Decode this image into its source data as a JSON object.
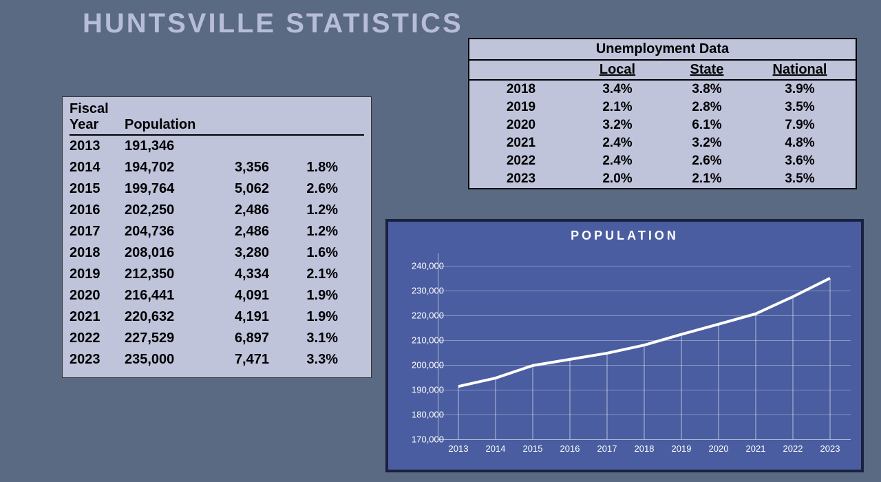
{
  "page": {
    "title": "HUNTSVILLE STATISTICS",
    "background_color": "#5a6a82",
    "title_color": "#b7bdd8"
  },
  "population_table": {
    "background_color": "#bfc4db",
    "header": {
      "col1_line1": "Fiscal",
      "col1_line2": "Year",
      "col2": "Population"
    },
    "rows": [
      {
        "year": "2013",
        "pop": "191,346",
        "delta": "",
        "pct": ""
      },
      {
        "year": "2014",
        "pop": "194,702",
        "delta": "3,356",
        "pct": "1.8%"
      },
      {
        "year": "2015",
        "pop": "199,764",
        "delta": "5,062",
        "pct": "2.6%"
      },
      {
        "year": "2016",
        "pop": "202,250",
        "delta": "2,486",
        "pct": "1.2%"
      },
      {
        "year": "2017",
        "pop": "204,736",
        "delta": "2,486",
        "pct": "1.2%"
      },
      {
        "year": "2018",
        "pop": "208,016",
        "delta": "3,280",
        "pct": "1.6%"
      },
      {
        "year": "2019",
        "pop": "212,350",
        "delta": "4,334",
        "pct": "2.1%"
      },
      {
        "year": "2020",
        "pop": "216,441",
        "delta": "4,091",
        "pct": "1.9%"
      },
      {
        "year": "2021",
        "pop": "220,632",
        "delta": "4,191",
        "pct": "1.9%"
      },
      {
        "year": "2022",
        "pop": "227,529",
        "delta": "6,897",
        "pct": "3.1%"
      },
      {
        "year": "2023",
        "pop": "235,000",
        "delta": "7,471",
        "pct": "3.3%"
      }
    ]
  },
  "unemployment_table": {
    "background_color": "#bfc4db",
    "title": "Unemployment Data",
    "headers": {
      "local": "Local",
      "state": "State",
      "national": "National"
    },
    "rows": [
      {
        "year": "2018",
        "local": "3.4%",
        "state": "3.8%",
        "national": "3.9%"
      },
      {
        "year": "2019",
        "local": "2.1%",
        "state": "2.8%",
        "national": "3.5%"
      },
      {
        "year": "2020",
        "local": "3.2%",
        "state": "6.1%",
        "national": "7.9%"
      },
      {
        "year": "2021",
        "local": "2.4%",
        "state": "3.2%",
        "national": "4.8%"
      },
      {
        "year": "2022",
        "local": "2.4%",
        "state": "2.6%",
        "national": "3.6%"
      },
      {
        "year": "2023",
        "local": "2.0%",
        "state": "2.1%",
        "national": "3.5%"
      }
    ]
  },
  "population_chart": {
    "type": "line",
    "title": "POPULATION",
    "background_color": "#4a5da0",
    "border_color": "#1a2040",
    "line_color": "#ffffff",
    "line_width": 4,
    "grid_color": "rgba(255,255,255,0.35)",
    "text_color": "#ffffff",
    "title_fontsize": 18,
    "label_fontsize": 13,
    "ymin": 170000,
    "ymax": 245000,
    "ytick_step": 10000,
    "ytick_labels": [
      "170,000",
      "180,000",
      "190,000",
      "200,000",
      "210,000",
      "220,000",
      "230,000",
      "240,000"
    ],
    "x_labels": [
      "2013",
      "2014",
      "2015",
      "2016",
      "2017",
      "2018",
      "2019",
      "2020",
      "2021",
      "2022",
      "2023"
    ],
    "values": [
      191346,
      194702,
      199764,
      202250,
      204736,
      208016,
      212350,
      216441,
      220632,
      227529,
      235000
    ],
    "drop_lines": true
  }
}
